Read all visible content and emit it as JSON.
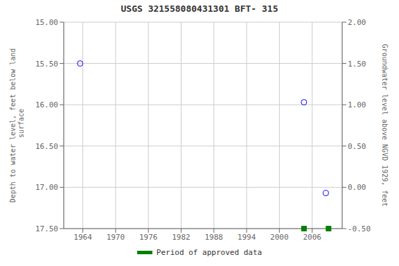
{
  "chart_data": {
    "type": "scatter",
    "title": "USGS 321558080431301 BFT- 315",
    "y_label": "Depth to water level, feet below land\n surface",
    "y2_label": "Groundwater level above NGVD 1929, feet",
    "xlim": [
      1960.5,
      2011.5
    ],
    "xticks": [
      1964,
      1970,
      1976,
      1982,
      1988,
      1994,
      2000,
      2006
    ],
    "ylim": [
      17.5,
      15.0
    ],
    "yticks": [
      {
        "value": 15.0,
        "label": "15.00"
      },
      {
        "value": 15.5,
        "label": "15.50"
      },
      {
        "value": 16.0,
        "label": "16.00"
      },
      {
        "value": 16.5,
        "label": "16.50"
      },
      {
        "value": 17.0,
        "label": "17.00"
      },
      {
        "value": 17.5,
        "label": "17.50"
      }
    ],
    "y2lim": [
      -0.5,
      2.0
    ],
    "y2ticks": [
      {
        "value": 2.0,
        "label": "2.00"
      },
      {
        "value": 1.5,
        "label": "1.50"
      },
      {
        "value": 1.0,
        "label": "1.00"
      },
      {
        "value": 0.5,
        "label": "0.50"
      },
      {
        "value": 0.0,
        "label": "0.00"
      },
      {
        "value": -0.5,
        "label": "-0.50"
      }
    ],
    "grid": true,
    "legend": "bottom",
    "series": [
      {
        "x": [
          1963.5,
          2004.5,
          2008.5
        ],
        "values": [
          15.5,
          15.97,
          17.07
        ],
        "color": "blue",
        "marker": "open_circle"
      },
      {
        "name": "Period of approved data",
        "x": [
          2004.5,
          2009.0
        ],
        "values": [
          17.5,
          17.5
        ],
        "color": "#008000",
        "marker": "square"
      }
    ]
  }
}
